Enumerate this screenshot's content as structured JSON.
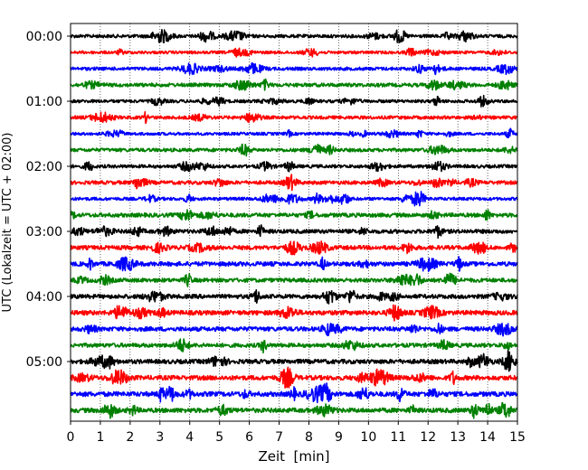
{
  "chart_data": {
    "type": "line",
    "xlabel": "Zeit  [min]",
    "ylabel": "UTC (Lokalzeit = UTC + 02:00)",
    "xlim": [
      0,
      15
    ],
    "x_ticks": [
      "0",
      "1",
      "2",
      "3",
      "4",
      "5",
      "6",
      "7",
      "8",
      "9",
      "10",
      "11",
      "12",
      "13",
      "14",
      "15"
    ],
    "y_tick_labels": [
      "00:00",
      "01:00",
      "02:00",
      "03:00",
      "04:00",
      "05:00"
    ],
    "y_axis_time_range": [
      "00:00",
      "06:00"
    ],
    "trace_interval_minutes": 15,
    "trace_count": 24,
    "color_cycle": [
      "#000000",
      "#ff0000",
      "#0000ff",
      "#008000"
    ],
    "grid": "vertical dotted lines at each minute",
    "traces": [
      {
        "start": "00:00",
        "color": "#000000",
        "amplitude": 0.18
      },
      {
        "start": "00:15",
        "color": "#ff0000",
        "amplitude": 0.16
      },
      {
        "start": "00:30",
        "color": "#0000ff",
        "amplitude": 0.18
      },
      {
        "start": "00:45",
        "color": "#008000",
        "amplitude": 0.2
      },
      {
        "start": "01:00",
        "color": "#000000",
        "amplitude": 0.17
      },
      {
        "start": "01:15",
        "color": "#ff0000",
        "amplitude": 0.18
      },
      {
        "start": "01:30",
        "color": "#0000ff",
        "amplitude": 0.16
      },
      {
        "start": "01:45",
        "color": "#008000",
        "amplitude": 0.19
      },
      {
        "start": "02:00",
        "color": "#000000",
        "amplitude": 0.18
      },
      {
        "start": "02:15",
        "color": "#ff0000",
        "amplitude": 0.2
      },
      {
        "start": "02:30",
        "color": "#0000ff",
        "amplitude": 0.17
      },
      {
        "start": "02:45",
        "color": "#008000",
        "amplitude": 0.22
      },
      {
        "start": "03:00",
        "color": "#000000",
        "amplitude": 0.22
      },
      {
        "start": "03:15",
        "color": "#ff0000",
        "amplitude": 0.23
      },
      {
        "start": "03:30",
        "color": "#0000ff",
        "amplitude": 0.24
      },
      {
        "start": "03:45",
        "color": "#008000",
        "amplitude": 0.22
      },
      {
        "start": "04:00",
        "color": "#000000",
        "amplitude": 0.23
      },
      {
        "start": "04:15",
        "color": "#ff0000",
        "amplitude": 0.25
      },
      {
        "start": "04:30",
        "color": "#0000ff",
        "amplitude": 0.24
      },
      {
        "start": "04:45",
        "color": "#008000",
        "amplitude": 0.22
      },
      {
        "start": "05:00",
        "color": "#000000",
        "amplitude": 0.24
      },
      {
        "start": "05:15",
        "color": "#ff0000",
        "amplitude": 0.25
      },
      {
        "start": "05:30",
        "color": "#0000ff",
        "amplitude": 0.26
      },
      {
        "start": "05:45",
        "color": "#008000",
        "amplitude": 0.25
      }
    ]
  }
}
